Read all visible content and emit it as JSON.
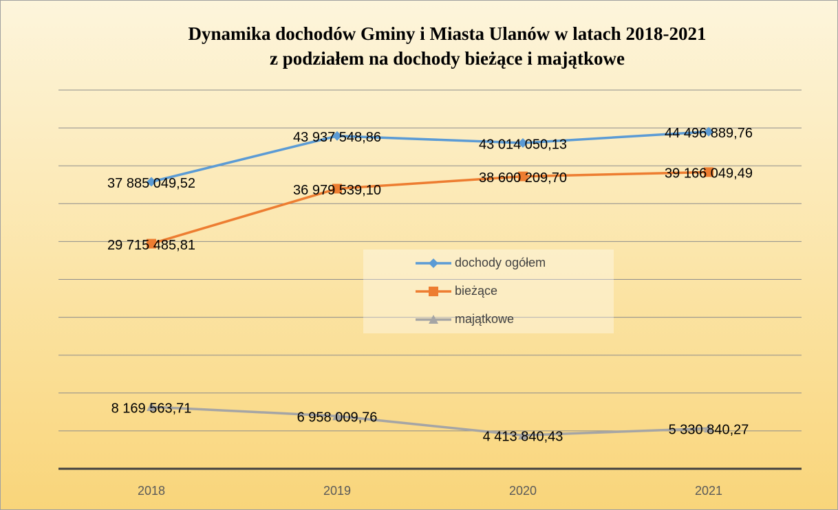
{
  "chart_data": {
    "type": "line",
    "title": [
      "Dynamika dochodów Gminy i Miasta Ulanów w latach 2018-2021",
      "z podziałem na dochody bieżące i majątkowe"
    ],
    "categories": [
      "2018",
      "2019",
      "2020",
      "2021"
    ],
    "series": [
      {
        "name": "dochody ogółem",
        "color": "#5b9bd5",
        "marker": "diamond",
        "values": [
          37885049.52,
          43937548.86,
          43014050.13,
          44496889.76
        ],
        "value_labels": [
          "37 885 049,52",
          "43 937 548,86",
          "43 014 050,13",
          "44 496 889,76"
        ]
      },
      {
        "name": "bieżące",
        "color": "#ed7d31",
        "marker": "square",
        "values": [
          29715485.81,
          36979539.1,
          38600209.7,
          39166049.49
        ],
        "value_labels": [
          "29 715 485,81",
          "36 979 539,10",
          "38 600 209,70",
          "39 166 049,49"
        ]
      },
      {
        "name": "majątkowe",
        "color": "#a5a5a5",
        "marker": "triangle",
        "values": [
          8169563.71,
          6958009.76,
          4413840.43,
          5330840.27
        ],
        "value_labels": [
          "8 169 563,71",
          "6 958 009,76",
          "4 413 840,43",
          "5 330 840,27"
        ]
      }
    ],
    "ylim": [
      0,
      50000000
    ],
    "yticks": [
      0,
      5000000,
      10000000,
      15000000,
      20000000,
      25000000,
      30000000,
      35000000,
      40000000,
      45000000,
      50000000
    ],
    "grid": true,
    "legend": "center"
  }
}
